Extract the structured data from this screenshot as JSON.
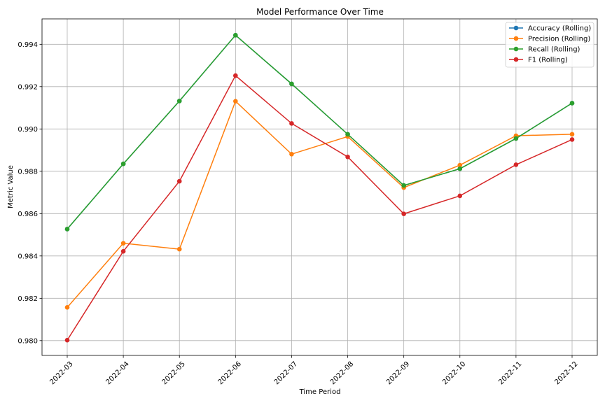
{
  "chart_data": {
    "type": "line",
    "title": "Model Performance Over Time",
    "xlabel": "Time Period",
    "ylabel": "Metric Value",
    "categories": [
      "2022-03",
      "2022-04",
      "2022-05",
      "2022-06",
      "2022-07",
      "2022-08",
      "2022-09",
      "2022-10",
      "2022-11",
      "2022-12"
    ],
    "ylim": [
      0.9793,
      0.9952
    ],
    "yticks": [
      0.98,
      0.982,
      0.984,
      0.986,
      0.988,
      0.99,
      0.992,
      0.994
    ],
    "ytick_labels": [
      "0.980",
      "0.982",
      "0.984",
      "0.986",
      "0.988",
      "0.990",
      "0.992",
      "0.994"
    ],
    "grid": true,
    "legend_position": "top-right",
    "series": [
      {
        "name": "Accuracy (Rolling)",
        "color": "#1f77b4",
        "values": [
          0.98527,
          0.98835,
          0.99132,
          0.99443,
          0.99213,
          0.98975,
          0.98733,
          0.98812,
          0.98955,
          0.99122
        ]
      },
      {
        "name": "Precision (Rolling)",
        "color": "#ff7f0e",
        "values": [
          0.98157,
          0.9846,
          0.98432,
          0.99131,
          0.98881,
          0.98964,
          0.98723,
          0.98829,
          0.98968,
          0.98975
        ]
      },
      {
        "name": "Recall (Rolling)",
        "color": "#2ca02c",
        "values": [
          0.98527,
          0.98835,
          0.99132,
          0.99443,
          0.99213,
          0.98975,
          0.98733,
          0.98812,
          0.98955,
          0.99122
        ]
      },
      {
        "name": "F1 (Rolling)",
        "color": "#d62728",
        "values": [
          0.98002,
          0.98422,
          0.98753,
          0.99252,
          0.99026,
          0.98868,
          0.98599,
          0.98684,
          0.98831,
          0.9895
        ]
      }
    ]
  }
}
